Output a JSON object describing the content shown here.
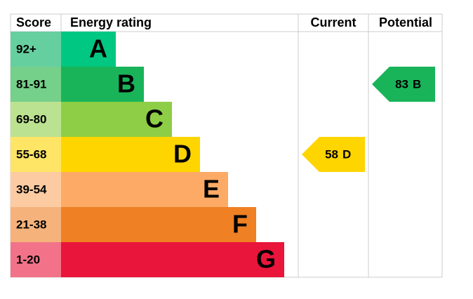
{
  "header": {
    "score": "Score",
    "rating": "Energy rating",
    "current": "Current",
    "potential": "Potential"
  },
  "bands": [
    {
      "score": "92+",
      "letter": "A",
      "color": "#00c781",
      "light": "#66cfa0"
    },
    {
      "score": "81-91",
      "letter": "B",
      "color": "#19b459",
      "light": "#75d08a"
    },
    {
      "score": "69-80",
      "letter": "C",
      "color": "#8dce46",
      "light": "#bbe290"
    },
    {
      "score": "55-68",
      "letter": "D",
      "color": "#ffd500",
      "light": "#ffe566"
    },
    {
      "score": "39-54",
      "letter": "E",
      "color": "#fcaa65",
      "light": "#fdcba2"
    },
    {
      "score": "21-38",
      "letter": "F",
      "color": "#ef8023",
      "light": "#f5b37b"
    },
    {
      "score": "1-20",
      "letter": "G",
      "color": "#e9153b",
      "light": "#f27389"
    }
  ],
  "current": {
    "value": 58,
    "letter": "D"
  },
  "potential": {
    "value": 83,
    "letter": "B"
  }
}
